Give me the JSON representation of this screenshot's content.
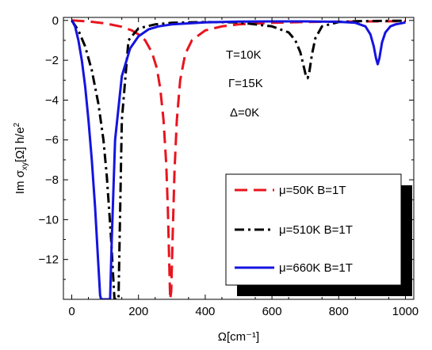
{
  "chart_data": {
    "type": "line",
    "xlabel": "Ω[cm⁻¹]",
    "ylabel_parts": [
      "Im σ",
      "xy",
      "[Ω] h/e",
      "2"
    ],
    "xlim": [
      -25,
      1025
    ],
    "ylim": [
      -14.0,
      0.15
    ],
    "xticks": [
      0,
      200,
      400,
      600,
      800,
      1000
    ],
    "yticks": [
      0,
      -2,
      -4,
      -6,
      -8,
      -10,
      -12
    ],
    "xtick_labels": [
      "0",
      "200",
      "400",
      "600",
      "800",
      "1000"
    ],
    "ytick_labels": [
      "0",
      "−2",
      "−4",
      "−6",
      "−8",
      "−10",
      "−12"
    ],
    "annotations": [
      "T=10K",
      "Γ=15K",
      "Δ=0K"
    ],
    "legend_position": "lower-right",
    "series": [
      {
        "name": "μ=50K  B=1T",
        "color": "#e8141e",
        "style": "dashed",
        "x": [
          0,
          50,
          100,
          150,
          180,
          200,
          220,
          240,
          255,
          265,
          275,
          283,
          288,
          292,
          295,
          298,
          302,
          308,
          315,
          325,
          340,
          360,
          400,
          450,
          500,
          600,
          700,
          800,
          900,
          1000
        ],
        "y": [
          0,
          -0.05,
          -0.15,
          -0.32,
          -0.5,
          -0.7,
          -1.0,
          -1.6,
          -2.4,
          -3.4,
          -5.0,
          -7.2,
          -9.5,
          -12.0,
          -14.0,
          -13.6,
          -11.0,
          -7.5,
          -5.0,
          -3.0,
          -1.7,
          -1.0,
          -0.5,
          -0.3,
          -0.2,
          -0.12,
          -0.08,
          -0.06,
          -0.05,
          -0.04
        ]
      },
      {
        "name": "μ=510K  B=1T",
        "color": "#000000",
        "style": "dashdot",
        "x": [
          0,
          20,
          40,
          60,
          80,
          95,
          105,
          112,
          118,
          123,
          128,
          132,
          136,
          140,
          150,
          170,
          200,
          250,
          300,
          400,
          500,
          600,
          650,
          670,
          685,
          695,
          702,
          707,
          712,
          720,
          730,
          750,
          800,
          850,
          900,
          950,
          1000
        ],
        "y": [
          0,
          -0.5,
          -1.3,
          -2.5,
          -4.2,
          -6.0,
          -7.8,
          -9.5,
          -11.0,
          -12.5,
          -14.0,
          -14.0,
          -14.0,
          -14.0,
          -5.0,
          -1.0,
          -0.4,
          -0.2,
          -0.12,
          -0.08,
          -0.1,
          -0.3,
          -0.6,
          -1.0,
          -1.6,
          -2.3,
          -2.8,
          -2.9,
          -2.6,
          -1.7,
          -0.9,
          -0.3,
          -0.08,
          -0.04,
          -0.03,
          -0.02,
          -0.02
        ]
      },
      {
        "name": "μ=660K  B=1T",
        "color": "#1414e0",
        "style": "solid",
        "x": [
          0,
          10,
          20,
          30,
          40,
          50,
          60,
          70,
          78,
          85,
          88,
          115,
          120,
          130,
          150,
          175,
          200,
          230,
          260,
          300,
          400,
          500,
          600,
          700,
          800,
          850,
          880,
          895,
          905,
          912,
          917,
          922,
          930,
          940,
          955,
          970,
          1000
        ],
        "y": [
          0,
          -0.3,
          -1.0,
          -2.0,
          -3.3,
          -5.0,
          -7.0,
          -9.4,
          -11.8,
          -13.8,
          -14.0,
          -14.0,
          -11.0,
          -6.0,
          -2.8,
          -1.4,
          -0.8,
          -0.45,
          -0.3,
          -0.2,
          -0.1,
          -0.06,
          -0.05,
          -0.05,
          -0.07,
          -0.12,
          -0.3,
          -0.7,
          -1.3,
          -1.9,
          -2.2,
          -1.9,
          -1.1,
          -0.6,
          -0.3,
          -0.2,
          -0.1
        ]
      }
    ]
  }
}
